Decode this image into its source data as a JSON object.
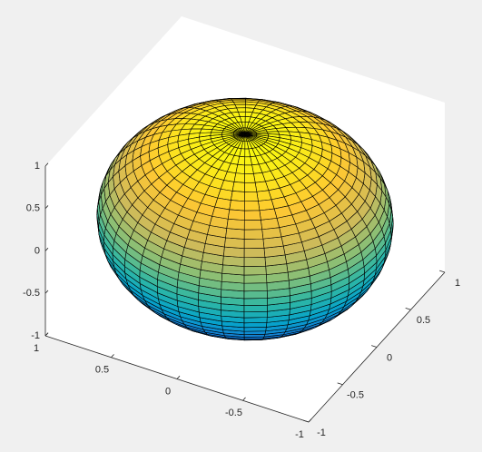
{
  "chart_data": {
    "type": "surface",
    "colormap": "parula",
    "xlim": [
      -1,
      1
    ],
    "ylim": [
      -1,
      1
    ],
    "zlim": [
      -1,
      1
    ],
    "xticks": [
      -1,
      -0.5,
      0,
      0.5,
      1
    ],
    "yticks": [
      -1,
      -0.5,
      0,
      0.5,
      1
    ],
    "zticks": [
      -1,
      -0.5,
      0,
      0.5,
      1
    ]
  }
}
